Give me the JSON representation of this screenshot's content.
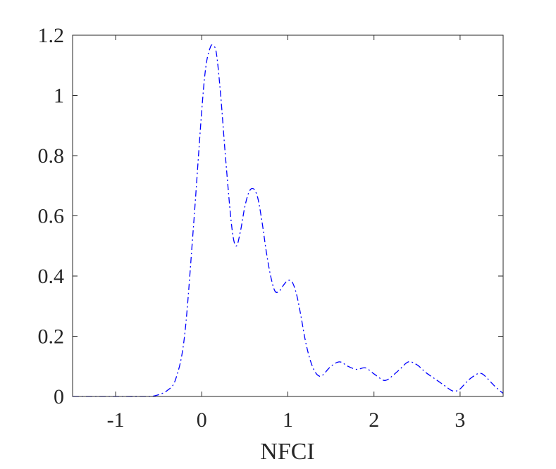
{
  "chart_data": {
    "type": "line",
    "title": "",
    "xlabel": "NFCI",
    "ylabel": "",
    "xlim": [
      -1.5,
      3.5
    ],
    "ylim": [
      0,
      1.2
    ],
    "xticks": [
      -1,
      0,
      1,
      2,
      3
    ],
    "xtick_labels": [
      "-1",
      "0",
      "1",
      "2",
      "3"
    ],
    "yticks": [
      0,
      0.2,
      0.4,
      0.6,
      0.8,
      1,
      1.2
    ],
    "ytick_labels": [
      "0",
      "0.2",
      "0.4",
      "0.6",
      "0.8",
      "1",
      "1.2"
    ],
    "grid": false,
    "box": true,
    "series": [
      {
        "color": "#0000ff",
        "line_style": "dash-dot",
        "x": [
          -1.5,
          -1.0,
          -0.7,
          -0.55,
          -0.4,
          -0.3,
          -0.2,
          -0.1,
          0.0,
          0.05,
          0.1,
          0.13,
          0.17,
          0.22,
          0.28,
          0.35,
          0.4,
          0.45,
          0.5,
          0.55,
          0.6,
          0.65,
          0.7,
          0.75,
          0.8,
          0.85,
          0.9,
          0.95,
          1.0,
          1.05,
          1.1,
          1.15,
          1.2,
          1.25,
          1.3,
          1.35,
          1.4,
          1.5,
          1.6,
          1.7,
          1.8,
          1.9,
          2.0,
          2.1,
          2.15,
          2.2,
          2.3,
          2.4,
          2.5,
          2.6,
          2.7,
          2.8,
          2.9,
          2.95,
          3.0,
          3.1,
          3.2,
          3.25,
          3.3,
          3.4,
          3.5
        ],
        "y": [
          0.0,
          0.0,
          0.0,
          0.002,
          0.02,
          0.06,
          0.2,
          0.55,
          0.95,
          1.1,
          1.16,
          1.165,
          1.14,
          1.0,
          0.78,
          0.56,
          0.5,
          0.55,
          0.63,
          0.68,
          0.69,
          0.66,
          0.58,
          0.48,
          0.4,
          0.35,
          0.35,
          0.37,
          0.385,
          0.38,
          0.34,
          0.27,
          0.19,
          0.13,
          0.09,
          0.07,
          0.07,
          0.1,
          0.115,
          0.1,
          0.09,
          0.095,
          0.075,
          0.055,
          0.055,
          0.065,
          0.09,
          0.115,
          0.105,
          0.08,
          0.06,
          0.04,
          0.02,
          0.018,
          0.025,
          0.055,
          0.075,
          0.076,
          0.065,
          0.035,
          0.01
        ]
      }
    ]
  }
}
